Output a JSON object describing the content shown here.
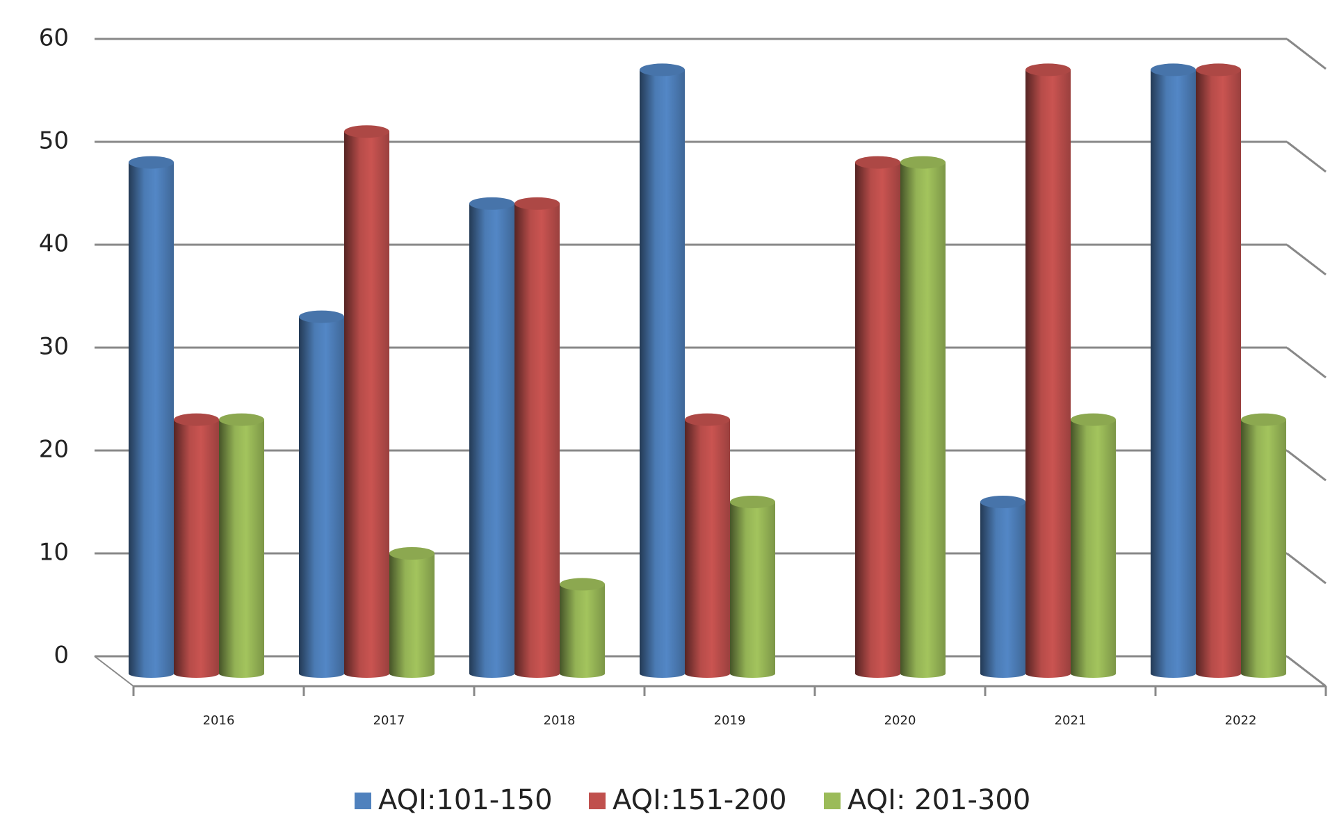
{
  "chart_data": {
    "type": "bar3d",
    "categories": [
      "2016",
      "2017",
      "2018",
      "2019",
      "2020",
      "2021",
      "2022"
    ],
    "series": [
      {
        "name": "AQI:101-150",
        "color": "#4f81bd",
        "values": [
          48,
          33,
          44,
          57,
          0,
          15,
          57
        ]
      },
      {
        "name": "AQI:151-200",
        "color": "#c0504d",
        "values": [
          23,
          51,
          44,
          23,
          48,
          57,
          57
        ]
      },
      {
        "name": "AQI: 201-300",
        "color": "#9bbb59",
        "values": [
          23,
          10,
          7,
          15,
          48,
          23,
          23
        ]
      }
    ],
    "ylim": [
      0,
      60
    ],
    "yticks": [
      0,
      10,
      20,
      30,
      40,
      50,
      60
    ],
    "grid": true,
    "legend": "bottom"
  }
}
